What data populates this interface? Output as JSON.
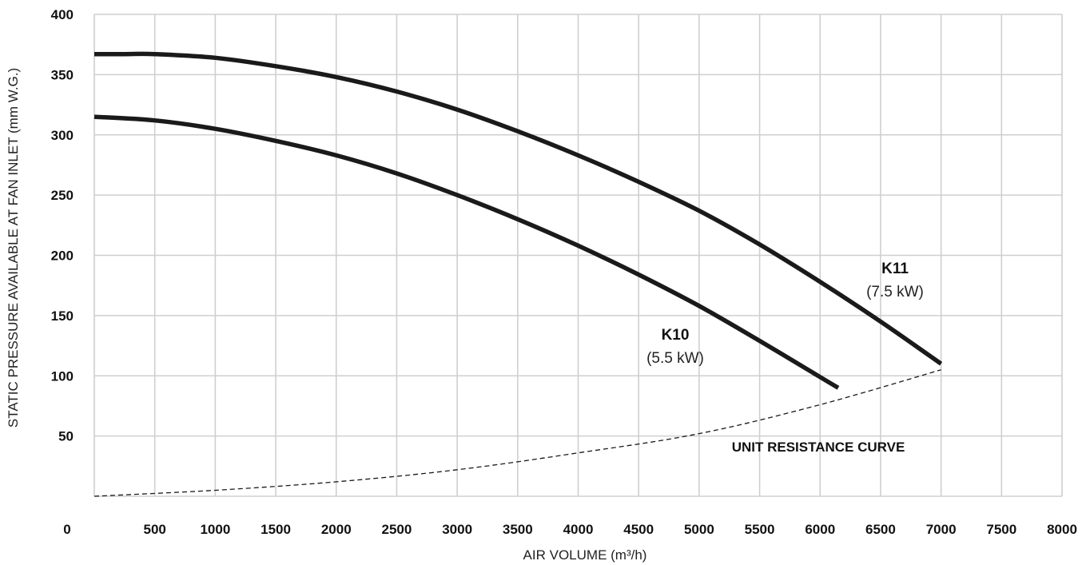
{
  "chart_data": {
    "type": "line",
    "xlabel": "AIR VOLUME (m³/h)",
    "ylabel": "STATIC PRESSURE AVAILABLE AT FAN INLET (mm W.G.)",
    "xlim": [
      0,
      8000
    ],
    "ylim": [
      0,
      400
    ],
    "x_ticks": [
      "0",
      "500",
      "1000",
      "1500",
      "2000",
      "2500",
      "3000",
      "3500",
      "4000",
      "4500",
      "5000",
      "5500",
      "6000",
      "6500",
      "7000",
      "7500",
      "8000"
    ],
    "y_ticks": [
      "50",
      "100",
      "150",
      "200",
      "250",
      "300",
      "350",
      "400"
    ],
    "grid": true,
    "series": [
      {
        "name": "K10",
        "power": "(5.5 kW)",
        "style": "solid",
        "x": [
          0,
          500,
          1000,
          1500,
          2000,
          2500,
          3000,
          3500,
          4000,
          4500,
          5000,
          5500,
          6000,
          6150
        ],
        "y": [
          315,
          312,
          305,
          295,
          283,
          268,
          250,
          230,
          208,
          184,
          158,
          129,
          99,
          90
        ]
      },
      {
        "name": "K11",
        "power": "(7.5 kW)",
        "style": "solid",
        "x": [
          0,
          250,
          500,
          1000,
          1500,
          2000,
          2500,
          3000,
          3500,
          4000,
          4500,
          5000,
          5500,
          6000,
          6500,
          7000
        ],
        "y": [
          367,
          367,
          367,
          364,
          357,
          348,
          336,
          321,
          303,
          283,
          261,
          237,
          209,
          178,
          145,
          110
        ]
      },
      {
        "name": "UNIT RESISTANCE CURVE",
        "style": "dashed",
        "x": [
          0,
          1000,
          2000,
          3000,
          4000,
          5000,
          6000,
          7000
        ],
        "y": [
          0,
          5,
          12,
          22,
          36,
          52,
          76,
          105
        ]
      }
    ],
    "colors": {
      "curve": "#1a1a1a",
      "grid": "#cfcfcf"
    }
  }
}
